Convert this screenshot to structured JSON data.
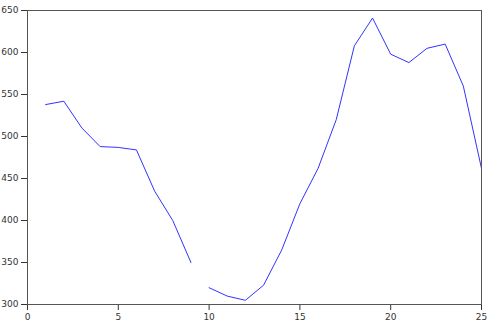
{
  "chart_data": {
    "type": "line",
    "x": [
      1,
      2,
      3,
      4,
      5,
      6,
      7,
      8,
      9,
      9.5,
      10,
      11,
      12,
      13,
      14,
      15,
      16,
      17,
      18,
      19,
      20,
      21,
      22,
      23,
      24,
      25
    ],
    "values": [
      538,
      542,
      510,
      488,
      487,
      484,
      435,
      400,
      350,
      null,
      320,
      310,
      305,
      323,
      365,
      420,
      462,
      520,
      608,
      641,
      598,
      588,
      605,
      610,
      560,
      462
    ],
    "color": "#3333ff",
    "xlim": [
      0,
      25
    ],
    "xticks": [
      0,
      5,
      10,
      15,
      20,
      25
    ],
    "ylim": [
      300,
      650
    ],
    "yticks": [
      300,
      350,
      400,
      450,
      500,
      550,
      600,
      650
    ],
    "grid": false
  }
}
